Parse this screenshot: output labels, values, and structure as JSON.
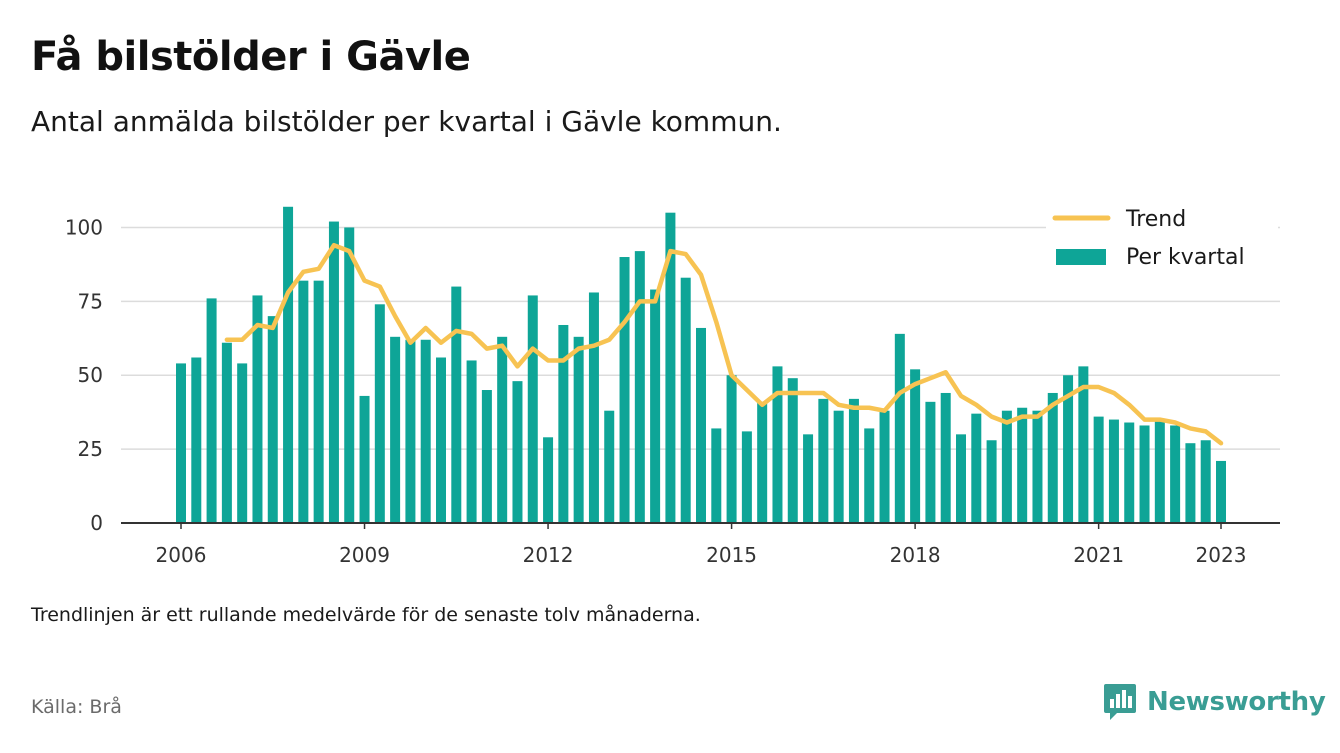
{
  "header": {
    "title": "Få bilstölder i Gävle",
    "subtitle": "Antal anmälda bilstölder per kvartal i Gävle kommun."
  },
  "footer": {
    "note": "Trendlinjen är ett rullande medelvärde för de senaste tolv månaderna.",
    "source": "Källa: Brå",
    "brand": "Newsworthy"
  },
  "colors": {
    "bar": "#0ea597",
    "trend": "#f7c352",
    "grid": "#dcdcdc",
    "axis": "#333333",
    "brand": "#3a9d94"
  },
  "chart_data": {
    "type": "bar",
    "title": "Få bilstölder i Gävle",
    "subtitle": "Antal anmälda bilstölder per kvartal i Gävle kommun.",
    "xlabel": "",
    "ylabel": "",
    "ylim": [
      0,
      112
    ],
    "yticks": [
      0,
      25,
      50,
      75,
      100
    ],
    "xticks": [
      "2006",
      "2009",
      "2012",
      "2015",
      "2018",
      "2021",
      "2023"
    ],
    "xtick_periods": [
      "2006Q1",
      "2009Q1",
      "2012Q1",
      "2015Q1",
      "2018Q1",
      "2021Q1",
      "2023Q1"
    ],
    "grid": true,
    "legend_position": "top-right",
    "categories": [
      "2006Q1",
      "2006Q2",
      "2006Q3",
      "2006Q4",
      "2007Q1",
      "2007Q2",
      "2007Q3",
      "2007Q4",
      "2008Q1",
      "2008Q2",
      "2008Q3",
      "2008Q4",
      "2009Q1",
      "2009Q2",
      "2009Q3",
      "2009Q4",
      "2010Q1",
      "2010Q2",
      "2010Q3",
      "2010Q4",
      "2011Q1",
      "2011Q2",
      "2011Q3",
      "2011Q4",
      "2012Q1",
      "2012Q2",
      "2012Q3",
      "2012Q4",
      "2013Q1",
      "2013Q2",
      "2013Q3",
      "2013Q4",
      "2014Q1",
      "2014Q2",
      "2014Q3",
      "2014Q4",
      "2015Q1",
      "2015Q2",
      "2015Q3",
      "2015Q4",
      "2016Q1",
      "2016Q2",
      "2016Q3",
      "2016Q4",
      "2017Q1",
      "2017Q2",
      "2017Q3",
      "2017Q4",
      "2018Q1",
      "2018Q2",
      "2018Q3",
      "2018Q4",
      "2019Q1",
      "2019Q2",
      "2019Q3",
      "2019Q4",
      "2020Q1",
      "2020Q2",
      "2020Q3",
      "2020Q4",
      "2021Q1",
      "2021Q2",
      "2021Q3",
      "2021Q4",
      "2022Q1",
      "2022Q2",
      "2022Q3",
      "2022Q4",
      "2023Q1"
    ],
    "series": [
      {
        "name": "Per kvartal",
        "type": "bar",
        "values": [
          54,
          56,
          76,
          61,
          54,
          77,
          70,
          107,
          82,
          82,
          102,
          100,
          43,
          74,
          63,
          62,
          62,
          56,
          80,
          55,
          45,
          63,
          48,
          77,
          29,
          67,
          63,
          78,
          38,
          90,
          92,
          79,
          105,
          83,
          66,
          32,
          50,
          31,
          41,
          53,
          49,
          30,
          42,
          38,
          42,
          32,
          38,
          64,
          52,
          41,
          44,
          30,
          37,
          28,
          38,
          39,
          38,
          44,
          50,
          53,
          36,
          35,
          34,
          33,
          35,
          33,
          27,
          28,
          21
        ]
      },
      {
        "name": "Trend",
        "type": "line",
        "values": [
          null,
          null,
          null,
          62,
          62,
          67,
          66,
          78,
          85,
          86,
          94,
          92,
          82,
          80,
          70,
          61,
          66,
          61,
          65,
          64,
          59,
          60,
          53,
          59,
          55,
          55,
          59,
          60,
          62,
          68,
          75,
          75,
          92,
          91,
          84,
          68,
          50,
          45,
          40,
          44,
          44,
          44,
          44,
          40,
          39,
          39,
          38,
          44,
          47,
          49,
          51,
          43,
          40,
          36,
          34,
          36,
          36,
          40,
          43,
          46,
          46,
          44,
          40,
          35,
          35,
          34,
          32,
          31,
          27
        ]
      }
    ]
  }
}
